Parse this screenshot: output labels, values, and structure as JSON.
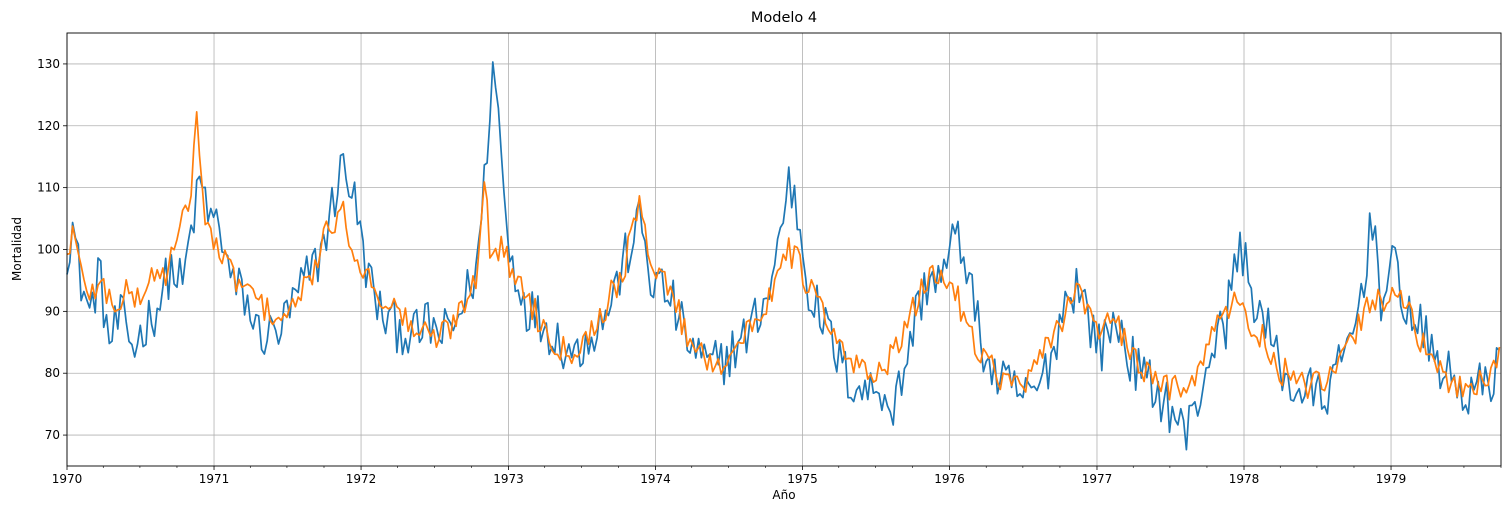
{
  "chart_data": {
    "type": "line",
    "title": "Modelo 4",
    "xlabel": "Año",
    "ylabel": "Mortalidad",
    "x_unit": "weekly, 1970-01 to 1979-10",
    "xlim": [
      "1970-01-01",
      "1979-10-01"
    ],
    "ylim": [
      65,
      135
    ],
    "grid": true,
    "xticks": [
      "1970",
      "1971",
      "1972",
      "1973",
      "1974",
      "1975",
      "1976",
      "1977",
      "1978",
      "1979"
    ],
    "yticks": [
      70,
      80,
      90,
      100,
      110,
      120,
      130
    ],
    "series": [
      {
        "color": "#1f77b4",
        "keyframes": [
          [
            "1970-01-01",
            100
          ],
          [
            "1970-01-15",
            104
          ],
          [
            "1970-02-01",
            96
          ],
          [
            "1970-03-01",
            89
          ],
          [
            "1970-03-20",
            97
          ],
          [
            "1970-04-15",
            85
          ],
          [
            "1970-05-15",
            89
          ],
          [
            "1970-06-15",
            84
          ],
          [
            "1970-07-15",
            88
          ],
          [
            "1970-08-15",
            91
          ],
          [
            "1970-09-15",
            97
          ],
          [
            "1970-10-15",
            94
          ],
          [
            "1970-11-10",
            105
          ],
          [
            "1970-12-01",
            111
          ],
          [
            "1970-12-20",
            105
          ],
          [
            "1971-01-15",
            104
          ],
          [
            "1971-02-15",
            94
          ],
          [
            "1971-03-15",
            93
          ],
          [
            "1971-04-15",
            87
          ],
          [
            "1971-05-15",
            86
          ],
          [
            "1971-06-15",
            87
          ],
          [
            "1971-07-15",
            91
          ],
          [
            "1971-08-15",
            95
          ],
          [
            "1971-09-15",
            98
          ],
          [
            "1971-10-15",
            105
          ],
          [
            "1971-11-15",
            114
          ],
          [
            "1971-12-10",
            110
          ],
          [
            "1972-01-10",
            98
          ],
          [
            "1972-02-15",
            90
          ],
          [
            "1972-03-15",
            88
          ],
          [
            "1972-04-15",
            87
          ],
          [
            "1972-05-15",
            86
          ],
          [
            "1972-06-15",
            88
          ],
          [
            "1972-07-15",
            86
          ],
          [
            "1972-08-15",
            87
          ],
          [
            "1972-09-15",
            92
          ],
          [
            "1972-10-15",
            97
          ],
          [
            "1972-11-05",
            113
          ],
          [
            "1972-11-22",
            130
          ],
          [
            "1972-12-10",
            120
          ],
          [
            "1972-12-31",
            100
          ],
          [
            "1973-01-20",
            96
          ],
          [
            "1973-02-15",
            91
          ],
          [
            "1973-03-15",
            89
          ],
          [
            "1973-04-15",
            87
          ],
          [
            "1973-05-15",
            85
          ],
          [
            "1973-06-15",
            83
          ],
          [
            "1973-07-15",
            86
          ],
          [
            "1973-08-15",
            88
          ],
          [
            "1973-09-15",
            92
          ],
          [
            "1973-10-15",
            98
          ],
          [
            "1973-11-25",
            105
          ],
          [
            "1973-12-20",
            95
          ],
          [
            "1974-01-15",
            94
          ],
          [
            "1974-02-15",
            91
          ],
          [
            "1974-03-15",
            86
          ],
          [
            "1974-04-15",
            83
          ],
          [
            "1974-05-15",
            81
          ],
          [
            "1974-06-15",
            82
          ],
          [
            "1974-07-15",
            84
          ],
          [
            "1974-08-15",
            86
          ],
          [
            "1974-09-15",
            90
          ],
          [
            "1974-10-15",
            94
          ],
          [
            "1974-11-05",
            102
          ],
          [
            "1974-11-25",
            111
          ],
          [
            "1974-12-15",
            108
          ],
          [
            "1975-01-15",
            94
          ],
          [
            "1975-02-15",
            89
          ],
          [
            "1975-03-15",
            85
          ],
          [
            "1975-04-15",
            80
          ],
          [
            "1975-05-15",
            78
          ],
          [
            "1975-06-15",
            77
          ],
          [
            "1975-07-15",
            78
          ],
          [
            "1975-08-15",
            74
          ],
          [
            "1975-09-15",
            82
          ],
          [
            "1975-10-15",
            91
          ],
          [
            "1975-11-15",
            96
          ],
          [
            "1975-12-15",
            95
          ],
          [
            "1976-01-10",
            102
          ],
          [
            "1976-02-10",
            99
          ],
          [
            "1976-03-15",
            86
          ],
          [
            "1976-04-15",
            80
          ],
          [
            "1976-05-15",
            78
          ],
          [
            "1976-06-15",
            77
          ],
          [
            "1976-07-15",
            76
          ],
          [
            "1976-08-15",
            78
          ],
          [
            "1976-09-15",
            84
          ],
          [
            "1976-10-15",
            92
          ],
          [
            "1976-11-15",
            95
          ],
          [
            "1976-12-15",
            88
          ],
          [
            "1977-01-15",
            84
          ],
          [
            "1977-02-15",
            89
          ],
          [
            "1977-03-15",
            84
          ],
          [
            "1977-04-15",
            80
          ],
          [
            "1977-05-15",
            78
          ],
          [
            "1977-06-15",
            76
          ],
          [
            "1977-07-15",
            73
          ],
          [
            "1977-08-10",
            70
          ],
          [
            "1977-09-15",
            77
          ],
          [
            "1977-10-15",
            85
          ],
          [
            "1977-11-15",
            87
          ],
          [
            "1977-12-01",
            95
          ],
          [
            "1977-12-25",
            101
          ],
          [
            "1978-01-15",
            94
          ],
          [
            "1978-02-15",
            89
          ],
          [
            "1978-03-15",
            84
          ],
          [
            "1978-04-15",
            79
          ],
          [
            "1978-05-15",
            77
          ],
          [
            "1978-06-15",
            77
          ],
          [
            "1978-07-15",
            76
          ],
          [
            "1978-08-15",
            79
          ],
          [
            "1978-09-15",
            84
          ],
          [
            "1978-10-15",
            91
          ],
          [
            "1978-11-01",
            99
          ],
          [
            "1978-11-20",
            106
          ],
          [
            "1978-12-10",
            90
          ],
          [
            "1979-01-10",
            98
          ],
          [
            "1979-02-10",
            90
          ],
          [
            "1979-03-15",
            87
          ],
          [
            "1979-04-15",
            83
          ],
          [
            "1979-05-15",
            80
          ],
          [
            "1979-06-15",
            78
          ],
          [
            "1979-07-15",
            76
          ],
          [
            "1979-08-15",
            78
          ],
          [
            "1979-09-15",
            80
          ],
          [
            "1979-10-01",
            87
          ]
        ]
      },
      {
        "color": "#ff7f0e",
        "keyframes": [
          [
            "1970-01-01",
            99
          ],
          [
            "1970-01-15",
            103
          ],
          [
            "1970-02-01",
            97
          ],
          [
            "1970-03-01",
            93
          ],
          [
            "1970-04-01",
            94
          ],
          [
            "1970-05-01",
            91
          ],
          [
            "1970-06-01",
            93
          ],
          [
            "1970-07-01",
            92
          ],
          [
            "1970-08-01",
            96
          ],
          [
            "1970-09-01",
            96
          ],
          [
            "1970-10-01",
            101
          ],
          [
            "1970-11-01",
            108
          ],
          [
            "1970-11-20",
            122
          ],
          [
            "1970-12-10",
            104
          ],
          [
            "1971-01-10",
            100
          ],
          [
            "1971-02-15",
            96
          ],
          [
            "1971-03-15",
            94
          ],
          [
            "1971-04-15",
            92
          ],
          [
            "1971-05-15",
            90
          ],
          [
            "1971-06-15",
            89
          ],
          [
            "1971-07-15",
            90
          ],
          [
            "1971-08-15",
            94
          ],
          [
            "1971-09-15",
            98
          ],
          [
            "1971-10-15",
            104
          ],
          [
            "1971-11-15",
            106
          ],
          [
            "1971-12-10",
            101
          ],
          [
            "1972-01-10",
            96
          ],
          [
            "1972-02-15",
            93
          ],
          [
            "1972-03-15",
            91
          ],
          [
            "1972-04-15",
            89
          ],
          [
            "1972-05-15",
            87
          ],
          [
            "1972-06-15",
            86
          ],
          [
            "1972-07-15",
            86
          ],
          [
            "1972-08-15",
            88
          ],
          [
            "1972-09-15",
            92
          ],
          [
            "1972-10-15",
            96
          ],
          [
            "1972-11-01",
            114
          ],
          [
            "1972-11-15",
            100
          ],
          [
            "1972-12-15",
            100
          ],
          [
            "1973-01-15",
            96
          ],
          [
            "1973-02-15",
            93
          ],
          [
            "1973-03-15",
            89
          ],
          [
            "1973-04-15",
            86
          ],
          [
            "1973-05-15",
            84
          ],
          [
            "1973-06-15",
            84
          ],
          [
            "1973-07-15",
            86
          ],
          [
            "1973-08-15",
            89
          ],
          [
            "1973-09-15",
            93
          ],
          [
            "1973-10-15",
            97
          ],
          [
            "1973-11-20",
            107
          ],
          [
            "1973-12-20",
            99
          ],
          [
            "1974-01-15",
            96
          ],
          [
            "1974-02-15",
            92
          ],
          [
            "1974-03-15",
            87
          ],
          [
            "1974-04-15",
            84
          ],
          [
            "1974-05-15",
            82
          ],
          [
            "1974-06-15",
            82
          ],
          [
            "1974-07-15",
            84
          ],
          [
            "1974-08-15",
            86
          ],
          [
            "1974-09-15",
            89
          ],
          [
            "1974-10-15",
            93
          ],
          [
            "1974-11-15",
            101
          ],
          [
            "1974-12-20",
            98
          ],
          [
            "1975-01-15",
            94
          ],
          [
            "1975-02-15",
            91
          ],
          [
            "1975-03-15",
            86
          ],
          [
            "1975-04-15",
            83
          ],
          [
            "1975-05-15",
            81
          ],
          [
            "1975-06-15",
            80
          ],
          [
            "1975-07-15",
            81
          ],
          [
            "1975-08-15",
            83
          ],
          [
            "1975-09-15",
            87
          ],
          [
            "1975-10-15",
            92
          ],
          [
            "1975-11-15",
            96
          ],
          [
            "1975-12-15",
            96
          ],
          [
            "1976-01-15",
            93
          ],
          [
            "1976-02-15",
            88
          ],
          [
            "1976-03-15",
            84
          ],
          [
            "1976-04-15",
            81
          ],
          [
            "1976-05-15",
            79
          ],
          [
            "1976-06-15",
            78
          ],
          [
            "1976-07-15",
            79
          ],
          [
            "1976-08-15",
            82
          ],
          [
            "1976-09-15",
            86
          ],
          [
            "1976-10-15",
            90
          ],
          [
            "1976-11-15",
            95
          ],
          [
            "1976-12-15",
            89
          ],
          [
            "1977-01-15",
            87
          ],
          [
            "1977-02-15",
            88
          ],
          [
            "1977-03-15",
            85
          ],
          [
            "1977-04-15",
            81
          ],
          [
            "1977-05-15",
            79
          ],
          [
            "1977-06-15",
            78
          ],
          [
            "1977-07-15",
            78
          ],
          [
            "1977-08-15",
            79
          ],
          [
            "1977-09-15",
            81
          ],
          [
            "1977-10-15",
            86
          ],
          [
            "1977-11-15",
            91
          ],
          [
            "1977-12-15",
            91
          ],
          [
            "1978-01-15",
            88
          ],
          [
            "1978-02-15",
            86
          ],
          [
            "1978-03-15",
            81
          ],
          [
            "1978-04-15",
            80
          ],
          [
            "1978-05-15",
            78
          ],
          [
            "1978-06-15",
            78
          ],
          [
            "1978-07-15",
            78
          ],
          [
            "1978-08-15",
            80
          ],
          [
            "1978-09-15",
            84
          ],
          [
            "1978-10-15",
            88
          ],
          [
            "1978-11-15",
            92
          ],
          [
            "1978-12-15",
            92
          ],
          [
            "1979-01-15",
            94
          ],
          [
            "1979-02-15",
            90
          ],
          [
            "1979-03-15",
            85
          ],
          [
            "1979-04-15",
            81
          ],
          [
            "1979-05-15",
            79
          ],
          [
            "1979-06-15",
            78
          ],
          [
            "1979-07-15",
            78
          ],
          [
            "1979-08-15",
            79
          ],
          [
            "1979-09-15",
            80
          ],
          [
            "1979-10-01",
            84
          ]
        ]
      }
    ]
  }
}
